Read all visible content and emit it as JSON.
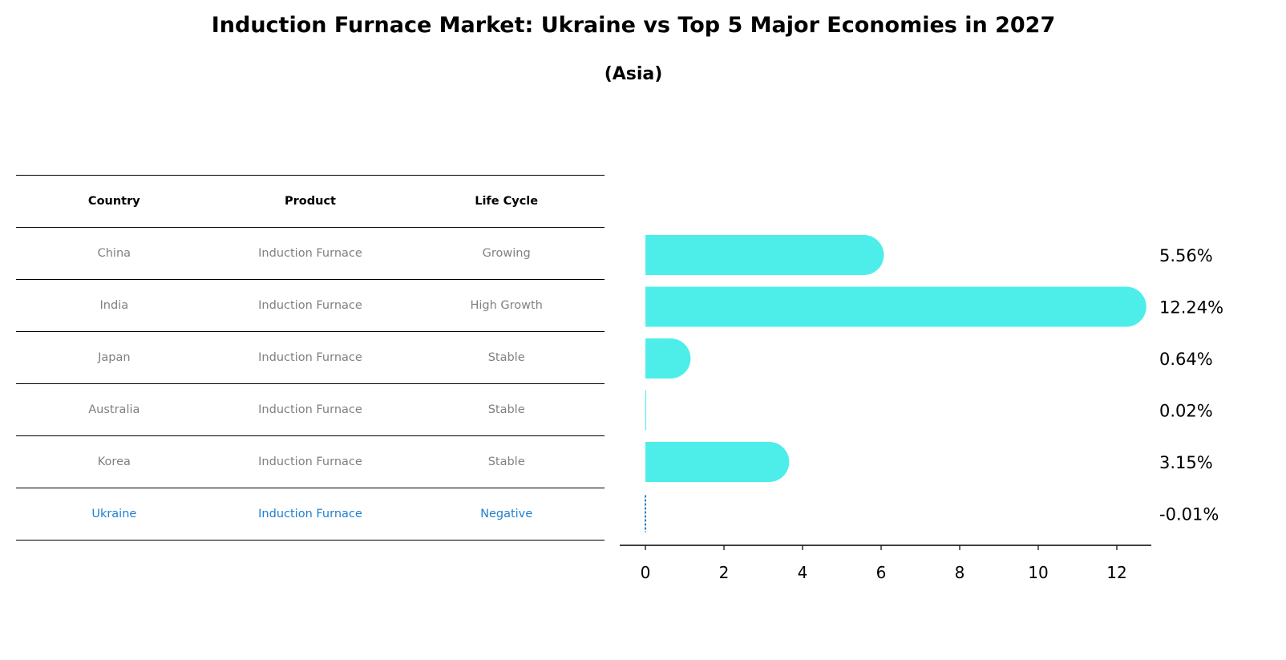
{
  "title": "Induction Furnace Market: Ukraine vs Top 5 Major Economies in 2027",
  "subtitle": "(Asia)",
  "table": {
    "headers": [
      "Country",
      "Product",
      "Life Cycle"
    ],
    "rows": [
      [
        "China",
        "Induction Furnace",
        "Growing"
      ],
      [
        "India",
        "Induction Furnace",
        "High Growth"
      ],
      [
        "Japan",
        "Induction Furnace",
        "Stable"
      ],
      [
        "Australia",
        "Induction Furnace",
        "Stable"
      ],
      [
        "Korea",
        "Induction Furnace",
        "Stable"
      ],
      [
        "Ukraine",
        "Induction Furnace",
        "Negative"
      ]
    ]
  },
  "chart_data": {
    "type": "bar",
    "orientation": "horizontal",
    "categories": [
      "China",
      "India",
      "Japan",
      "Australia",
      "Korea",
      "Ukraine"
    ],
    "values": [
      5.56,
      12.24,
      0.64,
      0.02,
      3.15,
      -0.01
    ],
    "labels": [
      "5.56%",
      "12.24%",
      "0.64%",
      "0.02%",
      "3.15%",
      "-0.01%"
    ],
    "xticks": [
      0,
      2,
      4,
      6,
      8,
      10,
      12
    ],
    "xlim": [
      -0.6,
      12.85
    ],
    "colors": {
      "bar": "#4deeea",
      "highlight": "#1f7fd0"
    }
  }
}
